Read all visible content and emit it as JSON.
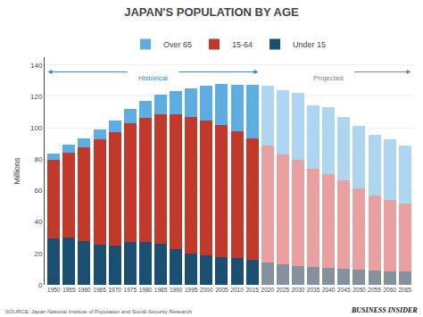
{
  "chart_data": {
    "type": "bar",
    "stacked": true,
    "title": "JAPAN'S POPULATION BY AGE",
    "ylabel": "Millions",
    "categories": [
      "1950",
      "1955",
      "1960",
      "1965",
      "1970",
      "1975",
      "1980",
      "1985",
      "1990",
      "1995",
      "2000",
      "2005",
      "2010",
      "2015",
      "2020",
      "2025",
      "2030",
      "2035",
      "2040",
      "2045",
      "2050",
      "2055",
      "2060",
      "2065"
    ],
    "series": [
      {
        "name": "Under 15",
        "color": "#1b4f72",
        "colors": [
          "#1b4f72",
          "#1b4f72",
          "#1b4f72",
          "#1b4f72",
          "#1b4f72",
          "#1b4f72",
          "#1b4f72",
          "#1b4f72",
          "#1b4f72",
          "#1b4f72",
          "#1b4f72",
          "#1b4f72",
          "#1b4f72",
          "#1b4f72",
          "#85929e",
          "#85929e",
          "#85929e",
          "#85929e",
          "#85929e",
          "#85929e",
          "#85929e",
          "#85929e",
          "#85929e",
          "#85929e"
        ],
        "values": [
          29.5,
          30.0,
          28.1,
          25.5,
          25.2,
          27.2,
          27.5,
          26.0,
          22.5,
          20.0,
          18.5,
          17.6,
          16.8,
          15.9,
          14.5,
          13.0,
          12.0,
          11.5,
          11.0,
          10.5,
          9.5,
          9.0,
          8.5,
          8.5
        ]
      },
      {
        "name": "15-64",
        "color": "#c0392b",
        "colors": [
          "#c0392b",
          "#c0392b",
          "#c0392b",
          "#c0392b",
          "#c0392b",
          "#c0392b",
          "#c0392b",
          "#c0392b",
          "#c0392b",
          "#c0392b",
          "#c0392b",
          "#c0392b",
          "#c0392b",
          "#c0392b",
          "#e8a0a0",
          "#e8a0a0",
          "#e8a0a0",
          "#e8a0a0",
          "#e8a0a0",
          "#e8a0a0",
          "#e8a0a0",
          "#e8a0a0",
          "#e8a0a0",
          "#e8a0a0"
        ],
        "values": [
          50.0,
          54.0,
          59.5,
          67.0,
          72.0,
          75.8,
          78.8,
          82.5,
          85.9,
          87.0,
          86.2,
          84.1,
          81.0,
          77.3,
          74.0,
          70.0,
          67.5,
          62.5,
          59.5,
          56.0,
          52.0,
          48.0,
          45.5,
          43.0
        ]
      },
      {
        "name": "Over 65",
        "color": "#5dade2",
        "colors": [
          "#5dade2",
          "#5dade2",
          "#5dade2",
          "#5dade2",
          "#5dade2",
          "#5dade2",
          "#5dade2",
          "#5dade2",
          "#5dade2",
          "#5dade2",
          "#5dade2",
          "#5dade2",
          "#5dade2",
          "#5dade2",
          "#aed6f1",
          "#aed6f1",
          "#aed6f1",
          "#aed6f1",
          "#aed6f1",
          "#aed6f1",
          "#aed6f1",
          "#aed6f1",
          "#aed6f1",
          "#aed6f1"
        ],
        "values": [
          4.1,
          5.0,
          5.4,
          6.2,
          7.4,
          8.9,
          10.6,
          12.5,
          14.9,
          18.3,
          22.0,
          26.0,
          29.5,
          34.0,
          38.5,
          41.0,
          43.0,
          40.5,
          42.5,
          40.5,
          40.0,
          38.5,
          38.5,
          37.0
        ]
      }
    ],
    "ylim": [
      0,
      145
    ],
    "yticks": [
      0,
      20,
      40,
      60,
      80,
      100,
      120,
      140
    ],
    "grid": true,
    "legend": "top",
    "annotations": [
      {
        "text": "Historical",
        "color": "#2e86c1"
      },
      {
        "text": "Projected",
        "color": "#808080"
      },
      {
        "text": "SOURCE: Japan National Institute of Population and Social-Security Research",
        "color": "#555555"
      },
      {
        "text": "BUSINESS INSIDER",
        "color": "#111111"
      }
    ]
  }
}
